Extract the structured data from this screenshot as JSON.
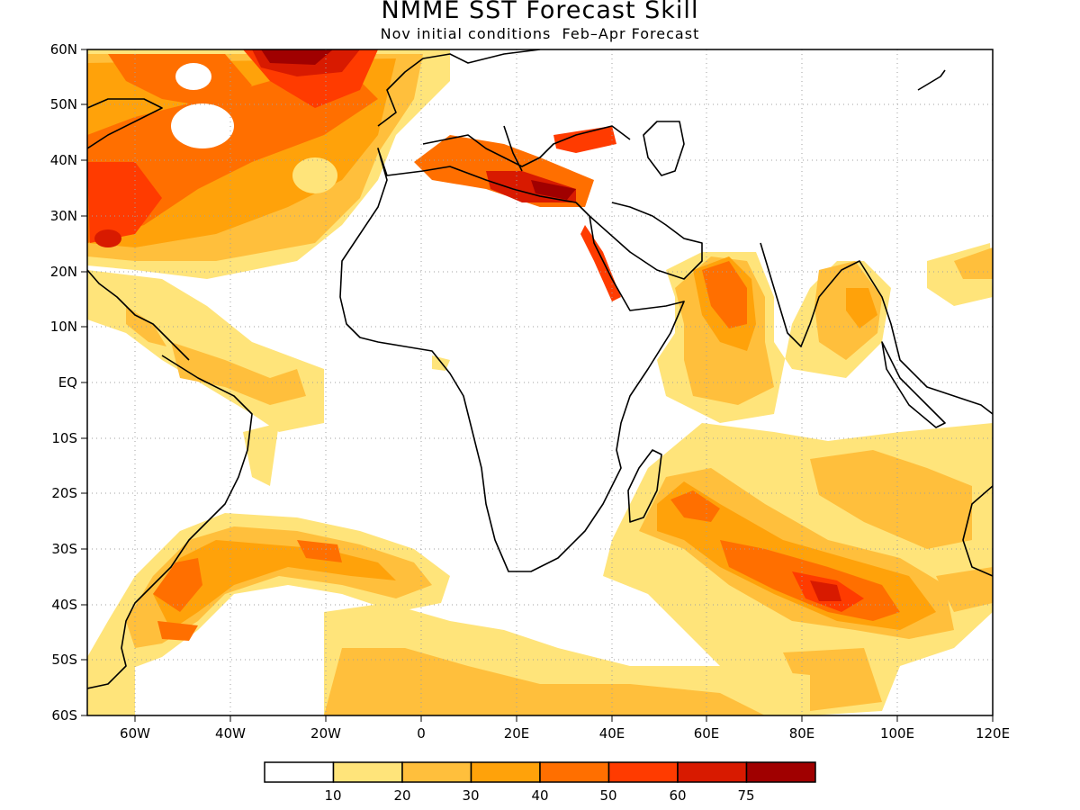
{
  "title": "NMME SST Forecast Skill",
  "subtitle": "Nov initial conditions  Feb–Apr Forecast",
  "map": {
    "lat_labels": [
      "60N",
      "50N",
      "40N",
      "30N",
      "20N",
      "10N",
      "EQ",
      "10S",
      "20S",
      "30S",
      "40S",
      "50S",
      "60S"
    ],
    "lon_labels": [
      "60W",
      "40W",
      "20W",
      "0",
      "20E",
      "40E",
      "60E",
      "80E",
      "100E",
      "120E"
    ],
    "lon_range": [
      -70,
      120
    ],
    "lat_range": [
      -60,
      60
    ],
    "grid": "dotted"
  },
  "colorbar": {
    "colors": [
      "#ffffff",
      "#ffe47a",
      "#ffbf3c",
      "#ffa20a",
      "#ff6f00",
      "#ff3b00",
      "#d81a00",
      "#a00000"
    ],
    "labels": [
      "10",
      "20",
      "30",
      "40",
      "50",
      "60",
      "75"
    ]
  }
}
